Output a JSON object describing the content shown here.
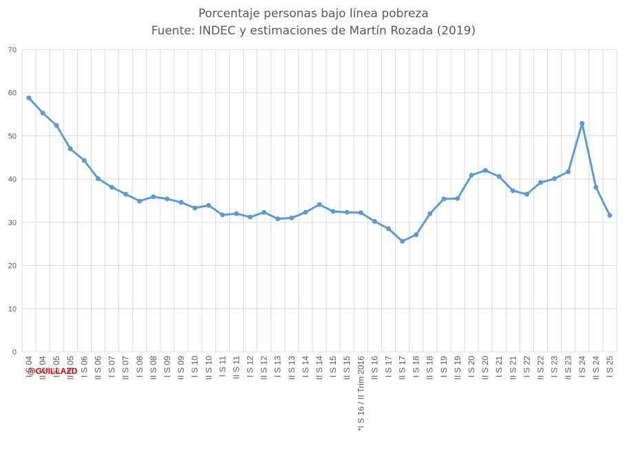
{
  "chart_data": {
    "type": "line",
    "title": "Porcentaje personas bajo línea pobreza",
    "subtitle": "Fuente: INDEC y estimaciones de  Martín Rozada (2019)",
    "ylim": [
      0,
      70
    ],
    "yticks": [
      0,
      10,
      20,
      30,
      40,
      50,
      60,
      70
    ],
    "grid": true,
    "categories": [
      "I S 04",
      "II S 04",
      "I S 05",
      "II S 05",
      "I S 06",
      "II S 06",
      "I S 07",
      "II S 07",
      "I S 08",
      "II S 08",
      "I S 09",
      "II S 09",
      "I S 10",
      "II S 10",
      "I S 11",
      "II S 11",
      "I S 12",
      "II S 12",
      "I S 13",
      "II S 13",
      "I S 14",
      "II S 14",
      "I S 15",
      "II S 15",
      "*I S 16 / II Trim 2016",
      "II S 16",
      "I S 17",
      "II S 17",
      "I S 18",
      "II S 18",
      "I S 19",
      "II S 19",
      "I S 20",
      "II S 20",
      "I S 21",
      "II S 21",
      "I S 22",
      "II S 22",
      "I S 23",
      "II S 23",
      "I S 24",
      "II S 24",
      "I S 25"
    ],
    "series": [
      {
        "color": "#5b9bd5",
        "values": [
          58.8,
          55.3,
          52.4,
          47.0,
          44.3,
          40.1,
          38.1,
          36.5,
          34.9,
          35.9,
          35.4,
          34.6,
          33.3,
          33.9,
          31.7,
          32.0,
          31.2,
          32.3,
          30.8,
          31.0,
          32.3,
          34.1,
          32.5,
          32.3,
          32.2,
          30.2,
          28.5,
          25.6,
          27.1,
          32.0,
          35.4,
          35.5,
          40.9,
          42.0,
          40.6,
          37.3,
          36.5,
          39.2,
          40.1,
          41.7,
          52.9,
          38.1,
          31.6
        ]
      }
    ]
  },
  "watermark": "@GUILLAZD"
}
